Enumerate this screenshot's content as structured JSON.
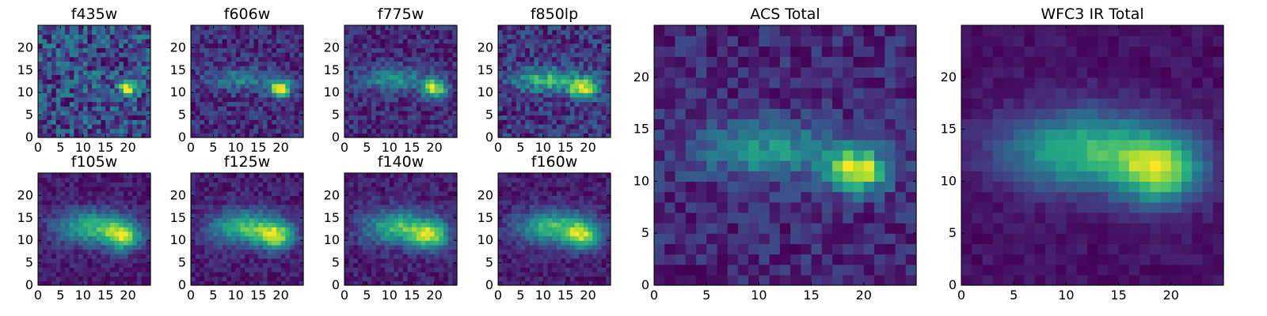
{
  "chart_data": [
    {
      "type": "heatmap",
      "title": "f435w",
      "size": 25,
      "xticks": [
        0,
        5,
        10,
        15,
        20
      ],
      "yticks": [
        0,
        5,
        10,
        15,
        20
      ],
      "xlim": [
        0,
        25
      ],
      "ylim": [
        0,
        25
      ],
      "colormap": "viridis",
      "model": {
        "background": 0.3,
        "noise": 0.28,
        "seed": 11,
        "components": [
          {
            "x": 20,
            "y": 11,
            "amp": 0.72,
            "sx": 1.4,
            "sy": 1.2
          },
          {
            "x": 13,
            "y": 13,
            "amp": 0.06,
            "sx": 4.0,
            "sy": 1.8
          }
        ]
      }
    },
    {
      "type": "heatmap",
      "title": "f606w",
      "size": 25,
      "xticks": [
        0,
        5,
        10,
        15,
        20
      ],
      "yticks": [
        0,
        5,
        10,
        15,
        20
      ],
      "xlim": [
        0,
        25
      ],
      "ylim": [
        0,
        25
      ],
      "colormap": "viridis",
      "model": {
        "background": 0.12,
        "noise": 0.14,
        "seed": 23,
        "components": [
          {
            "x": 20,
            "y": 11,
            "amp": 0.85,
            "sx": 1.8,
            "sy": 1.3
          },
          {
            "x": 11,
            "y": 13,
            "amp": 0.32,
            "sx": 5.0,
            "sy": 1.7
          }
        ]
      }
    },
    {
      "type": "heatmap",
      "title": "f775w",
      "size": 25,
      "xticks": [
        0,
        5,
        10,
        15,
        20
      ],
      "yticks": [
        0,
        5,
        10,
        15,
        20
      ],
      "xlim": [
        0,
        25
      ],
      "ylim": [
        0,
        25
      ],
      "colormap": "viridis",
      "model": {
        "background": 0.12,
        "noise": 0.13,
        "seed": 37,
        "components": [
          {
            "x": 20,
            "y": 11,
            "amp": 0.8,
            "sx": 1.9,
            "sy": 1.4
          },
          {
            "x": 11,
            "y": 13,
            "amp": 0.4,
            "sx": 5.0,
            "sy": 1.8
          }
        ]
      }
    },
    {
      "type": "heatmap",
      "title": "f850lp",
      "size": 25,
      "xticks": [
        0,
        5,
        10,
        15,
        20
      ],
      "yticks": [
        0,
        5,
        10,
        15,
        20
      ],
      "xlim": [
        0,
        25
      ],
      "ylim": [
        0,
        25
      ],
      "colormap": "viridis",
      "model": {
        "background": 0.1,
        "noise": 0.15,
        "seed": 41,
        "components": [
          {
            "x": 19,
            "y": 11,
            "amp": 0.7,
            "sx": 2.3,
            "sy": 1.6
          },
          {
            "x": 11,
            "y": 13,
            "amp": 0.45,
            "sx": 5.0,
            "sy": 1.8
          }
        ]
      }
    },
    {
      "type": "heatmap",
      "title": "f105w",
      "size": 25,
      "xticks": [
        0,
        5,
        10,
        15,
        20
      ],
      "yticks": [
        0,
        5,
        10,
        15,
        20
      ],
      "xlim": [
        0,
        25
      ],
      "ylim": [
        0,
        25
      ],
      "colormap": "viridis",
      "model": {
        "background": 0.08,
        "noise": 0.09,
        "seed": 53,
        "components": [
          {
            "x": 19,
            "y": 11,
            "amp": 0.72,
            "sx": 2.8,
            "sy": 2.2
          },
          {
            "x": 12,
            "y": 13,
            "amp": 0.6,
            "sx": 5.5,
            "sy": 2.6
          }
        ]
      }
    },
    {
      "type": "heatmap",
      "title": "f125w",
      "size": 25,
      "xticks": [
        0,
        5,
        10,
        15,
        20
      ],
      "yticks": [
        0,
        5,
        10,
        15,
        20
      ],
      "xlim": [
        0,
        25
      ],
      "ylim": [
        0,
        25
      ],
      "colormap": "viridis",
      "model": {
        "background": 0.08,
        "noise": 0.09,
        "seed": 67,
        "components": [
          {
            "x": 19,
            "y": 11,
            "amp": 0.7,
            "sx": 2.8,
            "sy": 2.1
          },
          {
            "x": 12,
            "y": 13,
            "amp": 0.62,
            "sx": 5.5,
            "sy": 2.6
          }
        ]
      }
    },
    {
      "type": "heatmap",
      "title": "f140w",
      "size": 25,
      "xticks": [
        0,
        5,
        10,
        15,
        20
      ],
      "yticks": [
        0,
        5,
        10,
        15,
        20
      ],
      "xlim": [
        0,
        25
      ],
      "ylim": [
        0,
        25
      ],
      "colormap": "viridis",
      "model": {
        "background": 0.08,
        "noise": 0.1,
        "seed": 79,
        "components": [
          {
            "x": 19,
            "y": 11,
            "amp": 0.68,
            "sx": 2.9,
            "sy": 2.2
          },
          {
            "x": 12,
            "y": 13,
            "amp": 0.62,
            "sx": 5.5,
            "sy": 2.6
          }
        ]
      }
    },
    {
      "type": "heatmap",
      "title": "f160w",
      "size": 25,
      "xticks": [
        0,
        5,
        10,
        15,
        20
      ],
      "yticks": [
        0,
        5,
        10,
        15,
        20
      ],
      "xlim": [
        0,
        25
      ],
      "ylim": [
        0,
        25
      ],
      "colormap": "viridis",
      "model": {
        "background": 0.08,
        "noise": 0.09,
        "seed": 83,
        "components": [
          {
            "x": 19,
            "y": 11,
            "amp": 0.68,
            "sx": 2.9,
            "sy": 2.2
          },
          {
            "x": 12,
            "y": 13,
            "amp": 0.63,
            "sx": 5.5,
            "sy": 2.6
          }
        ]
      }
    },
    {
      "type": "heatmap",
      "title": "ACS Total",
      "size": 25,
      "xticks": [
        0,
        5,
        10,
        15,
        20
      ],
      "yticks": [
        0,
        5,
        10,
        15,
        20
      ],
      "xlim": [
        0,
        25
      ],
      "ylim": [
        0,
        25
      ],
      "colormap": "viridis",
      "model": {
        "background": 0.14,
        "noise": 0.12,
        "seed": 97,
        "components": [
          {
            "x": 19.5,
            "y": 11,
            "amp": 0.85,
            "sx": 1.9,
            "sy": 1.4
          },
          {
            "x": 11,
            "y": 13,
            "amp": 0.42,
            "sx": 5.0,
            "sy": 1.9
          }
        ]
      }
    },
    {
      "type": "heatmap",
      "title": "WFC3 IR Total",
      "size": 25,
      "xticks": [
        0,
        5,
        10,
        15,
        20
      ],
      "yticks": [
        0,
        5,
        10,
        15,
        20
      ],
      "xlim": [
        0,
        25
      ],
      "ylim": [
        0,
        25
      ],
      "colormap": "viridis",
      "model": {
        "background": 0.08,
        "noise": 0.05,
        "seed": 101,
        "components": [
          {
            "x": 19,
            "y": 11,
            "amp": 0.7,
            "sx": 2.8,
            "sy": 2.2
          },
          {
            "x": 12,
            "y": 13,
            "amp": 0.62,
            "sx": 5.5,
            "sy": 2.6
          }
        ]
      }
    }
  ]
}
